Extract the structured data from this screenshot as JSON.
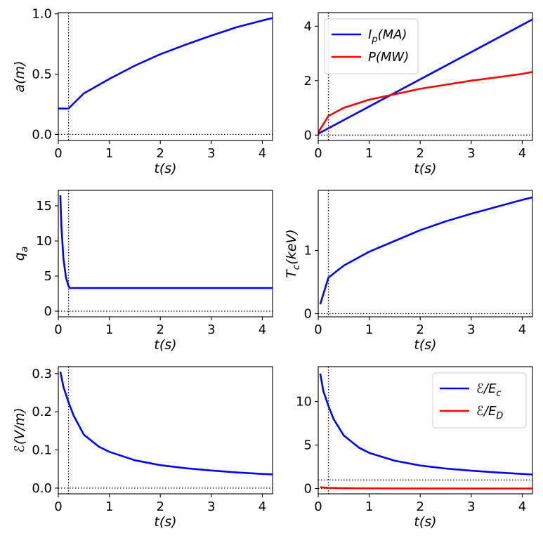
{
  "figure": {
    "vline_t": 0.2,
    "xlim": [
      0,
      4.2
    ]
  },
  "chart_data": [
    {
      "id": "a",
      "type": "line",
      "xlabel": "t(s)",
      "ylabel": "a(m)",
      "xlim": [
        0,
        4.2
      ],
      "ylim": [
        -0.05,
        1.01
      ],
      "xticks": [
        0,
        1,
        2,
        3,
        4
      ],
      "yticks": [
        0.0,
        0.5,
        1.0
      ],
      "ytick_labels": [
        "0.0",
        "0.5",
        "1.0"
      ],
      "hline": 0,
      "series": [
        {
          "name": "a(m)",
          "color": "#0000ff",
          "x": [
            0,
            0.2,
            0.5,
            1.0,
            1.5,
            2.0,
            2.5,
            3.0,
            3.5,
            4.0,
            4.2
          ],
          "y": [
            0.215,
            0.215,
            0.34,
            0.46,
            0.57,
            0.665,
            0.745,
            0.82,
            0.89,
            0.945,
            0.965
          ]
        }
      ]
    },
    {
      "id": "ip_p",
      "type": "line",
      "xlabel": "t(s)",
      "ylabel": "",
      "xlim": [
        0,
        4.2
      ],
      "ylim": [
        -0.2,
        4.5
      ],
      "xticks": [
        0,
        1,
        2,
        3,
        4
      ],
      "yticks": [
        0,
        2,
        4
      ],
      "ytick_labels": [
        "0",
        "2",
        "4"
      ],
      "hline": 0,
      "legend": {
        "position": "top-left"
      },
      "series": [
        {
          "name": "I_p(MA)",
          "legend_main": "I",
          "legend_sub": "p",
          "legend_rest": "(MA)",
          "color": "#0000ff",
          "x": [
            0,
            4.2
          ],
          "y": [
            0.05,
            4.25
          ]
        },
        {
          "name": "P(MW)",
          "legend_main": "P(MW)",
          "legend_sub": "",
          "legend_rest": "",
          "color": "#ff0000",
          "x": [
            0,
            0.2,
            0.5,
            1.0,
            1.5,
            2.0,
            2.5,
            3.0,
            3.5,
            4.0,
            4.2
          ],
          "y": [
            0.1,
            0.7,
            1.0,
            1.3,
            1.5,
            1.7,
            1.85,
            2.0,
            2.12,
            2.25,
            2.32
          ]
        }
      ]
    },
    {
      "id": "qa",
      "type": "line",
      "xlabel": "t(s)",
      "ylabel": "q_a",
      "ylabel_main": "q",
      "ylabel_sub": "a",
      "xlim": [
        0,
        4.2
      ],
      "ylim": [
        -0.8,
        17.2
      ],
      "xticks": [
        0,
        1,
        2,
        3,
        4
      ],
      "yticks": [
        0,
        5,
        10,
        15
      ],
      "ytick_labels": [
        "0",
        "5",
        "10",
        "15"
      ],
      "hline": 0,
      "series": [
        {
          "name": "q_a",
          "color": "#0000ff",
          "x": [
            0.04,
            0.06,
            0.1,
            0.15,
            0.2,
            0.22,
            4.2
          ],
          "y": [
            16.5,
            12.0,
            7.5,
            4.8,
            3.6,
            3.3,
            3.3
          ]
        }
      ]
    },
    {
      "id": "tc",
      "type": "line",
      "xlabel": "t(s)",
      "ylabel": "T_c(keV)",
      "ylabel_main": "T",
      "ylabel_sub": "c",
      "ylabel_rest": "(keV)",
      "xlim": [
        0,
        4.2
      ],
      "ylim": [
        -0.05,
        1.95
      ],
      "xticks": [
        0,
        1,
        2,
        3,
        4
      ],
      "yticks": [
        0,
        1
      ],
      "ytick_labels": [
        "0",
        "1"
      ],
      "hline": 0,
      "series": [
        {
          "name": "T_c(keV)",
          "color": "#0000ff",
          "x": [
            0.04,
            0.2,
            0.5,
            1.0,
            1.5,
            2.0,
            2.5,
            3.0,
            3.5,
            4.0,
            4.2
          ],
          "y": [
            0.15,
            0.57,
            0.76,
            0.98,
            1.15,
            1.32,
            1.46,
            1.58,
            1.69,
            1.8,
            1.84
          ]
        }
      ]
    },
    {
      "id": "efield",
      "type": "line",
      "xlabel": "t(s)",
      "ylabel": "ℰ(V/m)",
      "xlim": [
        0,
        4.2
      ],
      "ylim": [
        -0.015,
        0.318
      ],
      "xticks": [
        0,
        1,
        2,
        3,
        4
      ],
      "yticks": [
        0.0,
        0.1,
        0.2,
        0.3
      ],
      "ytick_labels": [
        "0.0",
        "0.1",
        "0.2",
        "0.3"
      ],
      "hline": 0,
      "series": [
        {
          "name": "ℰ(V/m)",
          "color": "#0000ff",
          "x": [
            0.04,
            0.1,
            0.2,
            0.3,
            0.5,
            0.8,
            1.0,
            1.5,
            2.0,
            2.5,
            3.0,
            3.5,
            4.0,
            4.2
          ],
          "y": [
            0.305,
            0.265,
            0.225,
            0.19,
            0.14,
            0.108,
            0.095,
            0.073,
            0.06,
            0.052,
            0.046,
            0.041,
            0.037,
            0.036
          ]
        }
      ]
    },
    {
      "id": "ratios",
      "type": "line",
      "xlabel": "t(s)",
      "ylabel": "",
      "xlim": [
        0,
        4.2
      ],
      "ylim": [
        -0.6,
        14.0
      ],
      "xticks": [
        0,
        1,
        2,
        3,
        4
      ],
      "yticks": [
        0,
        5,
        10
      ],
      "ytick_labels": [
        "0",
        "5",
        "10"
      ],
      "hline": 0,
      "hline2": 1,
      "legend": {
        "position": "top-right"
      },
      "series": [
        {
          "name": "ℰ/E_c",
          "legend_main": "ℰ/E",
          "legend_sub": "c",
          "legend_rest": "",
          "color": "#0000ff",
          "x": [
            0.04,
            0.1,
            0.2,
            0.3,
            0.5,
            0.8,
            1.0,
            1.5,
            2.0,
            2.5,
            3.0,
            3.5,
            4.0,
            4.2
          ],
          "y": [
            13.2,
            11.2,
            9.5,
            8.0,
            6.1,
            4.7,
            4.1,
            3.2,
            2.65,
            2.3,
            2.05,
            1.85,
            1.68,
            1.62
          ]
        },
        {
          "name": "ℰ/E_D",
          "legend_main": "ℰ/E",
          "legend_sub": "D",
          "legend_rest": "",
          "color": "#ff0000",
          "x": [
            0.04,
            0.2,
            0.5,
            1.0,
            2.0,
            3.0,
            4.2
          ],
          "y": [
            0.15,
            0.08,
            0.05,
            0.03,
            0.02,
            0.015,
            0.01
          ]
        }
      ]
    }
  ]
}
